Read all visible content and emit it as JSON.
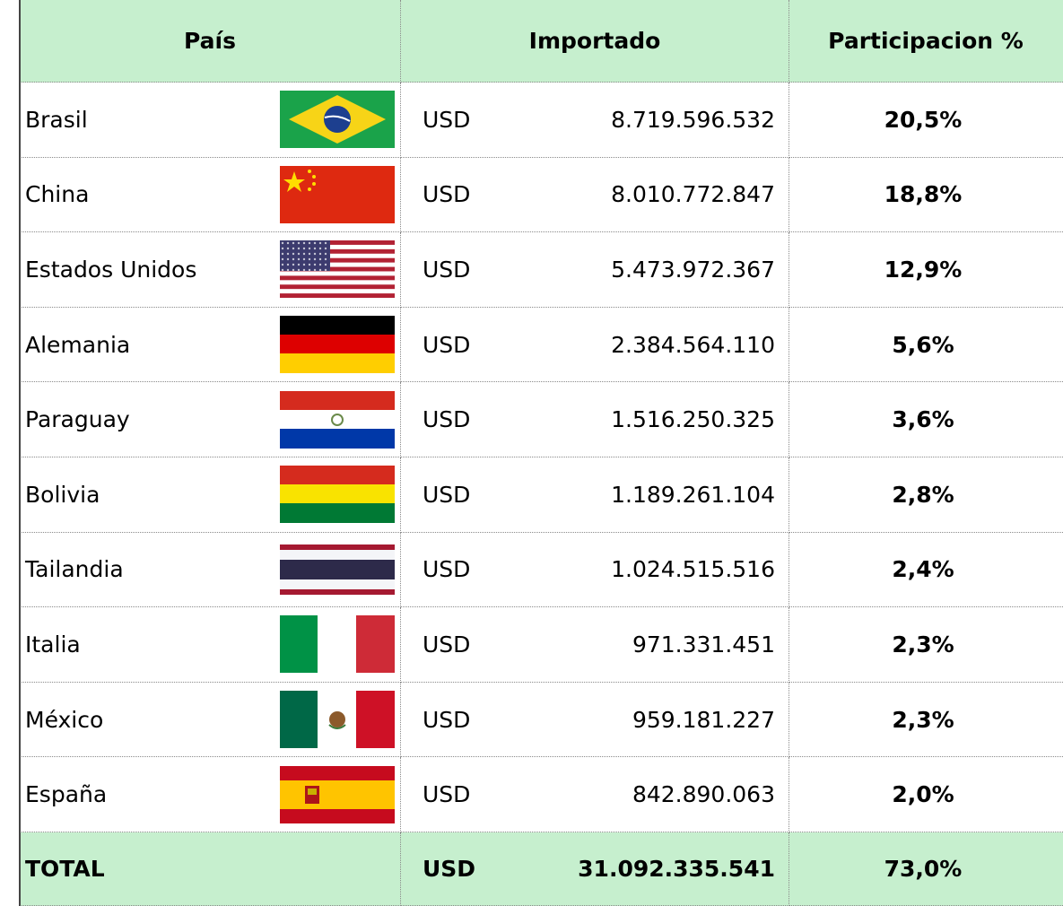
{
  "header": [
    "País",
    "Importado",
    "Participacion %"
  ],
  "rows": [
    [
      "Brasil",
      "USD",
      "8.719.596.532",
      "20,5%"
    ],
    [
      "China",
      "USD",
      "8.010.772.847",
      "18,8%"
    ],
    [
      "Estados Unidos",
      "USD",
      "5.473.972.367",
      "12,9%"
    ],
    [
      "Alemania",
      "USD",
      "2.384.564.110",
      "5,6%"
    ],
    [
      "Paraguay",
      "USD",
      "1.516.250.325",
      "3,6%"
    ],
    [
      "Bolivia",
      "USD",
      "1.189.261.104",
      "2,8%"
    ],
    [
      "Tailandia",
      "USD",
      "1.024.515.516",
      "2,4%"
    ],
    [
      "Italia",
      "USD",
      "971.331.451",
      "2,3%"
    ],
    [
      "México",
      "USD",
      "959.181.227",
      "2,3%"
    ],
    [
      "España",
      "USD",
      "842.890.063",
      "2,0%"
    ]
  ],
  "total": [
    "TOTAL",
    "USD",
    "31.092.335.541",
    "73,0%"
  ]
}
